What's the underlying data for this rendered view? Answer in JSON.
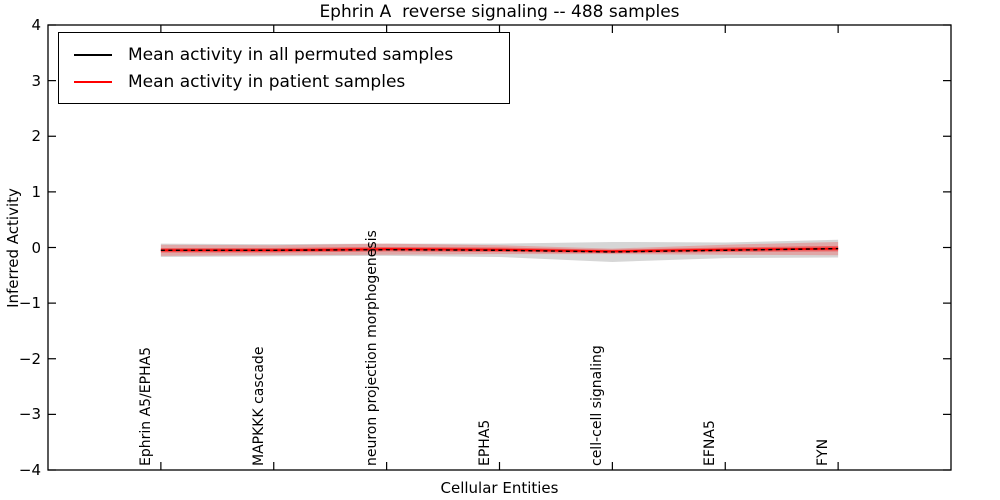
{
  "figure": {
    "title": "Ephrin A  reverse signaling -- 488 samples",
    "xlabel": "Cellular Entities",
    "ylabel": "Inferred Activity"
  },
  "legend": {
    "entries": [
      {
        "label": "Mean activity in all permuted samples",
        "color": "#000000"
      },
      {
        "label": "Mean activity in patient samples",
        "color": "#ff0000"
      }
    ]
  },
  "chart_data": {
    "type": "line",
    "title": "Ephrin A  reverse signaling -- 488 samples",
    "xlabel": "Cellular Entities",
    "ylabel": "Inferred Activity",
    "ylim": [
      -4,
      4
    ],
    "xlim": [
      -1,
      7
    ],
    "grid": false,
    "legend_position": "upper left",
    "ytick_labels": [
      "4",
      "3",
      "2",
      "1",
      "0",
      "−1",
      "−2",
      "−3",
      "−4"
    ],
    "ytick_values": [
      4,
      3,
      2,
      1,
      0,
      -1,
      -2,
      -3,
      -4
    ],
    "categories": [
      "Ephrin A5/EPHA5",
      "MAPKKK cascade",
      "neuron projection morphogenesis",
      "EPHA5",
      "cell-cell signaling",
      "EFNA5",
      "FYN"
    ],
    "x": [
      0,
      1,
      2,
      3,
      4,
      5,
      6
    ],
    "series": [
      {
        "name": "Mean activity in all permuted samples",
        "color": "#000000",
        "line_style": "dashed",
        "values": [
          -0.05,
          -0.05,
          -0.04,
          -0.05,
          -0.08,
          -0.05,
          -0.02
        ],
        "band_halfwidth": [
          0.12,
          0.11,
          0.11,
          0.12,
          0.18,
          0.14,
          0.16
        ],
        "band_color": "rgba(120,120,120,0.30)"
      },
      {
        "name": "Mean activity in patient samples",
        "color": "#ff0000",
        "line_style": "solid",
        "values": [
          -0.05,
          -0.05,
          -0.03,
          -0.04,
          -0.07,
          -0.04,
          -0.02
        ],
        "band_halfwidth": [
          0.1,
          0.09,
          0.1,
          0.08,
          0.05,
          0.09,
          0.12
        ],
        "band_inner_halfwidth": [
          0.04,
          0.04,
          0.04,
          0.04,
          0.03,
          0.04,
          0.05
        ],
        "band_color": "rgba(255,0,0,0.22)",
        "band_inner_color": "rgba(255,0,0,0.40)"
      }
    ]
  }
}
